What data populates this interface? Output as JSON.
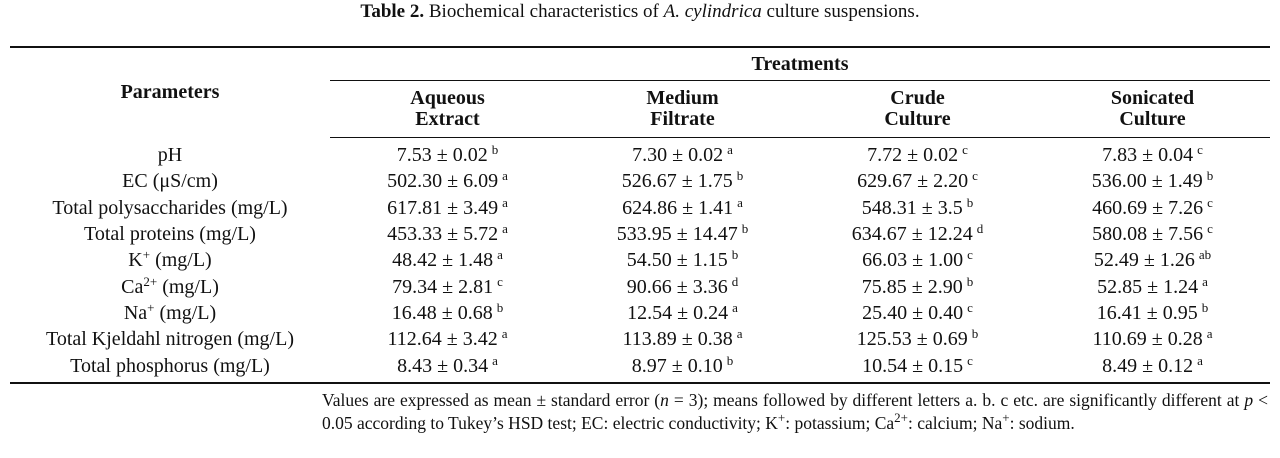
{
  "caption": {
    "label": "Table 2.",
    "before": " Biochemical characteristics of ",
    "species": "A. cylindrica",
    "after": " culture suspensions."
  },
  "table": {
    "header": {
      "parameters": "Parameters",
      "treatments": "Treatments",
      "columns": [
        [
          "Aqueous",
          "Extract"
        ],
        [
          "Medium",
          "Filtrate"
        ],
        [
          "Crude",
          "Culture"
        ],
        [
          "Sonicated",
          "Culture"
        ]
      ]
    },
    "rows": [
      {
        "label": [
          {
            "text": "pH"
          }
        ],
        "cells": [
          {
            "value": "7.53 ± 0.02",
            "letter": "b"
          },
          {
            "value": "7.30 ± 0.02",
            "letter": "a"
          },
          {
            "value": "7.72 ± 0.02",
            "letter": "c"
          },
          {
            "value": "7.83 ± 0.04",
            "letter": "c"
          }
        ]
      },
      {
        "label": [
          {
            "text": "EC (μS/cm)"
          }
        ],
        "cells": [
          {
            "value": "502.30 ± 6.09",
            "letter": "a"
          },
          {
            "value": "526.67 ± 1.75",
            "letter": "b"
          },
          {
            "value": "629.67 ± 2.20",
            "letter": "c"
          },
          {
            "value": "536.00 ± 1.49",
            "letter": "b"
          }
        ]
      },
      {
        "label": [
          {
            "text": "Total polysaccharides (mg/L)"
          }
        ],
        "cells": [
          {
            "value": "617.81 ± 3.49",
            "letter": "a"
          },
          {
            "value": "624.86 ± 1.41",
            "letter": "a"
          },
          {
            "value": "548.31 ± 3.5",
            "letter": "b"
          },
          {
            "value": "460.69 ± 7.26",
            "letter": "c"
          }
        ]
      },
      {
        "label": [
          {
            "text": "Total proteins (mg/L)"
          }
        ],
        "cells": [
          {
            "value": "453.33 ± 5.72",
            "letter": "a"
          },
          {
            "value": "533.95 ± 14.47",
            "letter": "b"
          },
          {
            "value": "634.67 ± 12.24",
            "letter": "d"
          },
          {
            "value": "580.08 ± 7.56",
            "letter": "c"
          }
        ]
      },
      {
        "label": [
          {
            "text": "K"
          },
          {
            "text": "+",
            "style": "sup"
          },
          {
            "text": " (mg/L)"
          }
        ],
        "cells": [
          {
            "value": "48.42 ± 1.48",
            "letter": "a"
          },
          {
            "value": "54.50 ± 1.15",
            "letter": "b"
          },
          {
            "value": "66.03 ± 1.00",
            "letter": "c"
          },
          {
            "value": "52.49 ± 1.26",
            "letter": "ab"
          }
        ]
      },
      {
        "label": [
          {
            "text": "Ca"
          },
          {
            "text": "2+",
            "style": "sup"
          },
          {
            "text": " (mg/L)"
          }
        ],
        "cells": [
          {
            "value": "79.34 ± 2.81",
            "letter": "c"
          },
          {
            "value": "90.66 ± 3.36",
            "letter": "d"
          },
          {
            "value": "75.85 ± 2.90",
            "letter": "b"
          },
          {
            "value": "52.85 ± 1.24",
            "letter": "a"
          }
        ]
      },
      {
        "label": [
          {
            "text": "Na"
          },
          {
            "text": "+",
            "style": "sup"
          },
          {
            "text": " (mg/L)"
          }
        ],
        "cells": [
          {
            "value": "16.48 ± 0.68",
            "letter": "b"
          },
          {
            "value": "12.54 ± 0.24",
            "letter": "a"
          },
          {
            "value": "25.40 ± 0.40",
            "letter": "c"
          },
          {
            "value": "16.41 ± 0.95",
            "letter": "b"
          }
        ]
      },
      {
        "label": [
          {
            "text": "Total Kjeldahl nitrogen (mg/L)"
          }
        ],
        "cells": [
          {
            "value": "112.64 ± 3.42",
            "letter": "a"
          },
          {
            "value": "113.89 ± 0.38",
            "letter": "a"
          },
          {
            "value": "125.53 ± 0.69",
            "letter": "b"
          },
          {
            "value": "110.69 ± 0.28",
            "letter": "a"
          }
        ]
      },
      {
        "label": [
          {
            "text": "Total phosphorus (mg/L)"
          }
        ],
        "cells": [
          {
            "value": "8.43 ± 0.34",
            "letter": "a"
          },
          {
            "value": "8.97 ± 0.10",
            "letter": "b"
          },
          {
            "value": "10.54 ± 0.15",
            "letter": "c"
          },
          {
            "value": "8.49 ± 0.12",
            "letter": "a"
          }
        ]
      }
    ]
  },
  "note": [
    {
      "text": "Values are expressed as mean ± standard error ("
    },
    {
      "text": "n",
      "style": "italic"
    },
    {
      "text": " = 3); means followed by different letters a. b. c etc. are significantly different at "
    },
    {
      "text": "p",
      "style": "italic"
    },
    {
      "text": " < 0.05 according to Tukey’s HSD test; EC: electric conductivity; K"
    },
    {
      "text": "+",
      "style": "sup"
    },
    {
      "text": ": potassium; Ca"
    },
    {
      "text": "2+",
      "style": "sup"
    },
    {
      "text": ": calcium; Na"
    },
    {
      "text": "+",
      "style": "sup"
    },
    {
      "text": ": sodium."
    }
  ]
}
